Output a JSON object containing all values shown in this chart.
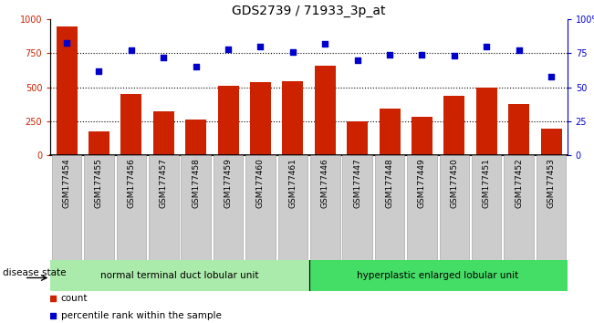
{
  "title": "GDS2739 / 71933_3p_at",
  "categories": [
    "GSM177454",
    "GSM177455",
    "GSM177456",
    "GSM177457",
    "GSM177458",
    "GSM177459",
    "GSM177460",
    "GSM177461",
    "GSM177446",
    "GSM177447",
    "GSM177448",
    "GSM177449",
    "GSM177450",
    "GSM177451",
    "GSM177452",
    "GSM177453"
  ],
  "bar_values": [
    950,
    175,
    450,
    320,
    265,
    510,
    535,
    545,
    660,
    250,
    345,
    280,
    435,
    495,
    375,
    195
  ],
  "scatter_values": [
    83,
    62,
    77,
    72,
    65,
    78,
    80,
    76,
    82,
    70,
    74,
    74,
    73,
    80,
    77,
    58
  ],
  "bar_color": "#cc2200",
  "scatter_color": "#0000cc",
  "ylim_left": [
    0,
    1000
  ],
  "ylim_right": [
    0,
    100
  ],
  "yticks_left": [
    0,
    250,
    500,
    750,
    1000
  ],
  "yticks_right": [
    0,
    25,
    50,
    75,
    100
  ],
  "yticklabels_right": [
    "0",
    "25",
    "50",
    "75",
    "100%"
  ],
  "grid_values": [
    250,
    500,
    750
  ],
  "group1_label": "normal terminal duct lobular unit",
  "group2_label": "hyperplastic enlarged lobular unit",
  "group1_n": 8,
  "group2_n": 8,
  "group1_color": "#aaeaaa",
  "group2_color": "#44dd66",
  "disease_state_label": "disease state",
  "legend_bar_label": "count",
  "legend_scatter_label": "percentile rank within the sample",
  "bg_color": "#ffffff",
  "tick_bg_color": "#cccccc",
  "title_fontsize": 10,
  "axis_fontsize": 7,
  "label_fontsize": 8
}
